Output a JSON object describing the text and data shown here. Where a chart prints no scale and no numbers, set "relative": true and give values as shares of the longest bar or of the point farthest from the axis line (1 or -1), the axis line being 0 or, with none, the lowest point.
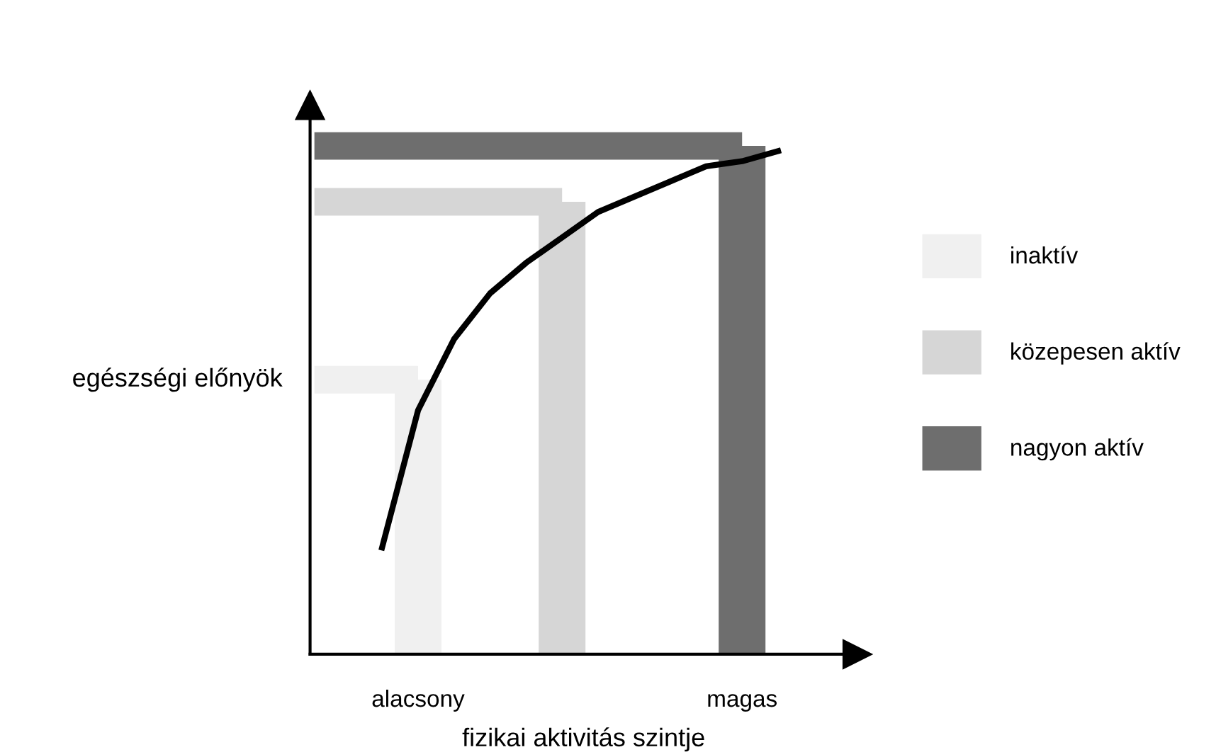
{
  "chart_data": {
    "type": "bar",
    "relative": true,
    "xlabel": "fizikai aktivitás szintje",
    "ylabel": "egészségi előnyök",
    "categories": [
      null,
      "alacsony",
      null,
      null,
      null,
      null,
      null,
      null,
      null,
      null,
      "magas",
      null
    ],
    "series": [
      {
        "name": "inaktív",
        "color": "#f0f0f0",
        "values": [
          null,
          0.54,
          null,
          null,
          null,
          null,
          null,
          null,
          null,
          null,
          null,
          null
        ]
      },
      {
        "name": "közepesen aktív",
        "color": "#d6d6d6",
        "values": [
          null,
          null,
          null,
          null,
          null,
          0.89,
          null,
          null,
          null,
          null,
          null,
          null
        ]
      },
      {
        "name": "nagyon aktív",
        "color": "#6e6e6e",
        "values": [
          null,
          null,
          null,
          null,
          null,
          null,
          null,
          null,
          null,
          null,
          1,
          null
        ]
      },
      {
        "type": "line",
        "color": "#000000",
        "values": [
          0.21,
          0.48,
          0.62,
          0.71,
          0.77,
          0.82,
          0.87,
          0.9,
          0.93,
          0.96,
          0.97,
          0.99
        ]
      }
    ],
    "ref_lines": [
      {
        "axis": "y",
        "value": 0.54,
        "color": "#f0f0f0"
      },
      {
        "axis": "y",
        "value": 0.89,
        "color": "#d6d6d6"
      },
      {
        "axis": "y",
        "value": 1,
        "color": "#6e6e6e"
      }
    ],
    "legend": "right",
    "grid": false
  }
}
